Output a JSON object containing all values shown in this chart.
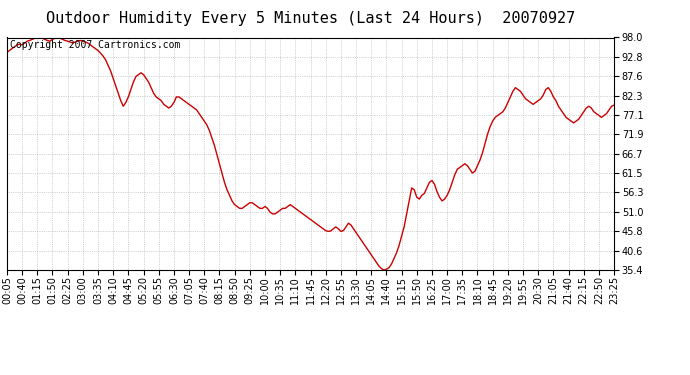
{
  "title": "Outdoor Humidity Every 5 Minutes (Last 24 Hours)  20070927",
  "copyright_text": "Copyright 2007 Cartronics.com",
  "line_color": "#cc0000",
  "background_color": "#ffffff",
  "plot_bg_color": "#ffffff",
  "grid_color": "#aaaaaa",
  "ylim": [
    35.4,
    98.0
  ],
  "yticks": [
    35.4,
    40.6,
    45.8,
    51.0,
    56.3,
    61.5,
    66.7,
    71.9,
    77.1,
    82.3,
    87.6,
    92.8,
    98.0
  ],
  "xtick_labels": [
    "00:05",
    "00:40",
    "01:15",
    "01:50",
    "02:25",
    "03:00",
    "03:35",
    "04:10",
    "04:45",
    "05:20",
    "05:55",
    "06:30",
    "07:05",
    "07:40",
    "08:15",
    "08:50",
    "09:25",
    "10:00",
    "10:35",
    "11:10",
    "11:45",
    "12:20",
    "12:55",
    "13:30",
    "14:05",
    "14:40",
    "15:15",
    "15:50",
    "16:25",
    "17:00",
    "17:35",
    "18:10",
    "18:45",
    "19:20",
    "19:55",
    "20:30",
    "21:05",
    "21:40",
    "22:15",
    "22:50",
    "23:25"
  ],
  "humidity_values": [
    94.0,
    94.5,
    95.0,
    95.5,
    96.0,
    96.2,
    96.0,
    96.5,
    97.0,
    97.2,
    97.5,
    97.8,
    97.8,
    97.9,
    97.8,
    97.5,
    97.2,
    97.0,
    97.5,
    97.8,
    97.9,
    97.8,
    97.5,
    97.2,
    97.0,
    96.8,
    96.5,
    96.8,
    97.0,
    97.2,
    97.0,
    96.8,
    96.5,
    96.0,
    95.5,
    95.0,
    94.5,
    93.8,
    93.0,
    92.0,
    90.5,
    89.0,
    87.0,
    85.0,
    83.0,
    81.0,
    79.5,
    80.5,
    82.0,
    84.0,
    86.0,
    87.5,
    88.0,
    88.5,
    88.0,
    87.0,
    86.0,
    84.5,
    83.0,
    82.0,
    81.5,
    81.0,
    80.0,
    79.5,
    79.0,
    79.5,
    80.5,
    82.0,
    82.0,
    81.5,
    81.0,
    80.5,
    80.0,
    79.5,
    79.0,
    78.5,
    77.5,
    76.5,
    75.5,
    74.5,
    73.0,
    71.0,
    69.0,
    66.5,
    64.0,
    61.5,
    59.0,
    57.0,
    55.5,
    54.0,
    53.0,
    52.5,
    52.0,
    52.0,
    52.5,
    53.0,
    53.5,
    53.5,
    53.0,
    52.5,
    52.0,
    52.0,
    52.5,
    52.0,
    51.0,
    50.5,
    50.5,
    51.0,
    51.5,
    52.0,
    52.0,
    52.5,
    53.0,
    52.5,
    52.0,
    51.5,
    51.0,
    50.5,
    50.0,
    49.5,
    49.0,
    48.5,
    48.0,
    47.5,
    47.0,
    46.5,
    46.0,
    45.8,
    45.9,
    46.5,
    47.0,
    46.5,
    45.8,
    46.0,
    47.0,
    48.0,
    47.5,
    46.5,
    45.5,
    44.5,
    43.5,
    42.5,
    41.5,
    40.5,
    39.5,
    38.5,
    37.5,
    36.5,
    35.8,
    35.4,
    35.6,
    36.0,
    37.0,
    38.5,
    40.0,
    42.0,
    44.5,
    47.0,
    50.5,
    54.0,
    57.5,
    57.0,
    55.0,
    54.5,
    55.5,
    56.0,
    57.5,
    59.0,
    59.5,
    58.5,
    56.5,
    55.0,
    54.0,
    54.5,
    55.5,
    57.0,
    59.0,
    61.0,
    62.5,
    63.0,
    63.5,
    64.0,
    63.5,
    62.5,
    61.5,
    62.0,
    63.5,
    65.0,
    67.0,
    69.5,
    72.0,
    74.0,
    75.5,
    76.5,
    77.0,
    77.5,
    78.0,
    79.0,
    80.5,
    82.0,
    83.5,
    84.5,
    84.0,
    83.5,
    82.5,
    81.5,
    81.0,
    80.5,
    80.0,
    80.5,
    81.0,
    81.5,
    82.5,
    84.0,
    84.5,
    83.5,
    82.0,
    81.0,
    79.5,
    78.5,
    77.5,
    76.5,
    76.0,
    75.5,
    75.0,
    75.5,
    76.0,
    77.0,
    78.0,
    79.0,
    79.5,
    79.0,
    78.0,
    77.5,
    77.0,
    76.5,
    77.0,
    77.5,
    78.5,
    79.5,
    79.8
  ],
  "title_fontsize": 11,
  "tick_fontsize": 7,
  "copyright_fontsize": 7,
  "line_width": 1.0
}
